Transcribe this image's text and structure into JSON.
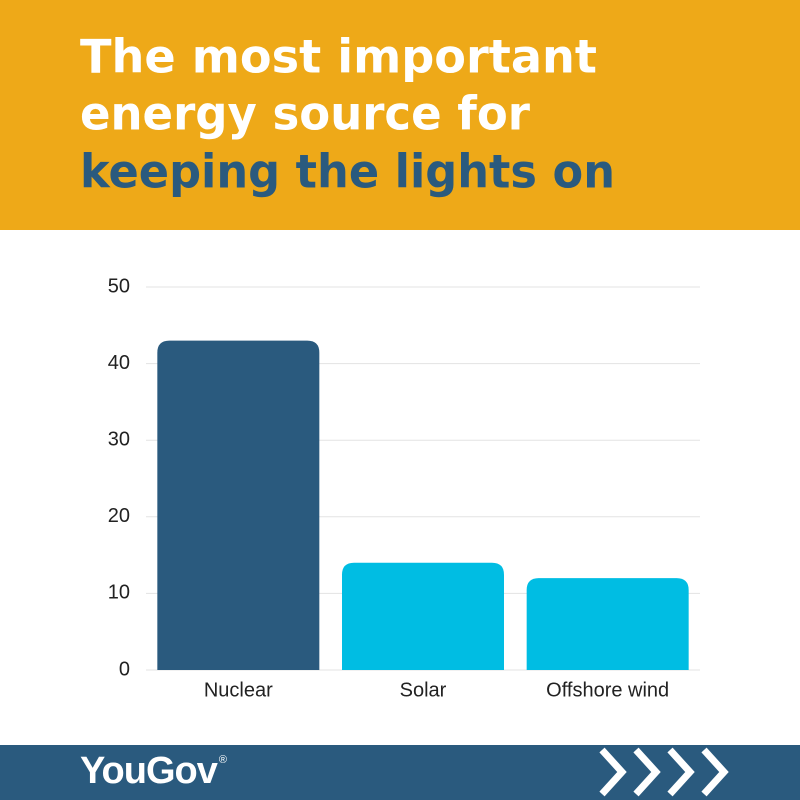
{
  "chart_data": {
    "type": "bar",
    "title_lines": [
      "The most important",
      "energy source for",
      "keeping the lights on"
    ],
    "categories": [
      "Nuclear",
      "Solar",
      "Offshore wind"
    ],
    "values": [
      43,
      14,
      12
    ],
    "colors": [
      "#2a5a7e",
      "#00bde3",
      "#00bde3"
    ],
    "ylim": [
      0,
      50
    ],
    "yticks": [
      0,
      10,
      20,
      30,
      40,
      50
    ],
    "grid": true
  },
  "footer": {
    "brand": "YouGov",
    "brand_mark": "®"
  }
}
